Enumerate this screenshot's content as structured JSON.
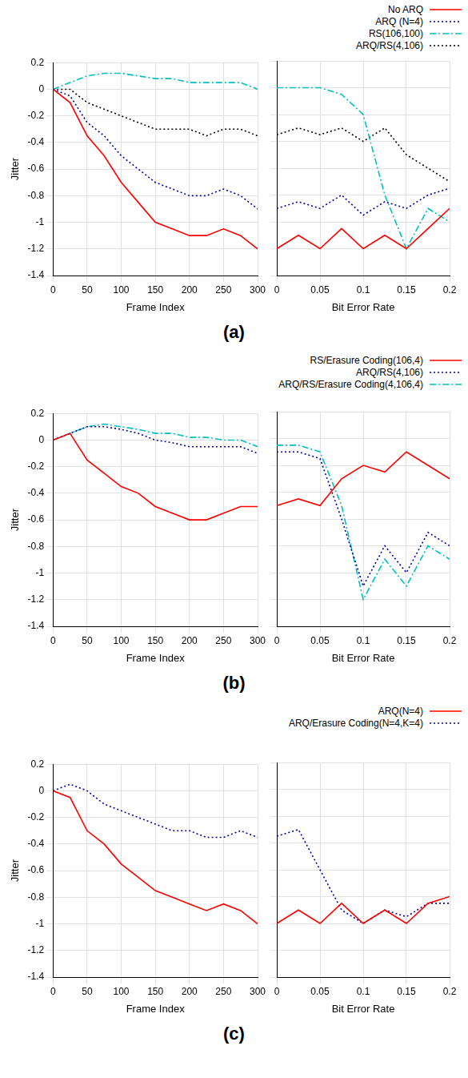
{
  "chart_data": [
    {
      "type": "line",
      "title": "(a)",
      "x_label": "Frame Index",
      "y_label": "Jitter",
      "x": [
        0,
        25,
        50,
        75,
        100,
        125,
        150,
        175,
        200,
        225,
        250,
        275,
        300
      ],
      "xlim": [
        0,
        300
      ],
      "xticks": [
        0,
        50,
        100,
        150,
        200,
        250,
        300
      ],
      "ylim": [
        -1.4,
        0.2
      ],
      "yticks": [
        -1.4,
        -1.2,
        -1,
        -0.8,
        -0.6,
        -0.4,
        -0.2,
        0,
        0.2
      ],
      "grid": true,
      "legend": "top right",
      "series": [
        {
          "name": "No ARQ",
          "color": "#ff0000",
          "line_style": "solid",
          "values": [
            0,
            -0.1,
            -0.35,
            -0.5,
            -0.7,
            -0.85,
            -1.0,
            -1.05,
            -1.1,
            -1.1,
            -1.05,
            -1.1,
            -1.2
          ]
        },
        {
          "name": "ARQ (N=4)",
          "color": "#0000a0",
          "line_style": "dotted",
          "values": [
            0,
            -0.05,
            -0.25,
            -0.35,
            -0.5,
            -0.6,
            -0.7,
            -0.75,
            -0.8,
            -0.8,
            -0.75,
            -0.8,
            -0.9
          ]
        },
        {
          "name": "RS(106,100)",
          "color": "#00c0c0",
          "line_style": "dashdot",
          "values": [
            0,
            0.05,
            0.1,
            0.12,
            0.12,
            0.1,
            0.08,
            0.08,
            0.05,
            0.05,
            0.05,
            0.05,
            0
          ]
        },
        {
          "name": "ARQ/RS(4,106)",
          "color": "#000000",
          "line_style": "dotted",
          "values": [
            0,
            0,
            -0.1,
            -0.15,
            -0.2,
            -0.25,
            -0.3,
            -0.3,
            -0.3,
            -0.35,
            -0.3,
            -0.3,
            -0.35
          ]
        }
      ]
    },
    {
      "type": "line",
      "x_label": "Bit Error Rate",
      "x": [
        0,
        0.025,
        0.05,
        0.075,
        0.1,
        0.125,
        0.15,
        0.175,
        0.2
      ],
      "xlim": [
        0,
        0.2
      ],
      "xticks": [
        0,
        0.05,
        0.1,
        0.15,
        0.2
      ],
      "ylim": [
        -1.4,
        0.2
      ],
      "yticks": [
        -1.4,
        -1.2,
        -1,
        -0.8,
        -0.6,
        -0.4,
        -0.2,
        0,
        0.2
      ],
      "grid": true,
      "tick_labels": "x",
      "series": [
        {
          "name": "No ARQ",
          "color": "#ff0000",
          "line_style": "solid",
          "values": [
            -1.2,
            -1.1,
            -1.2,
            -1.05,
            -1.2,
            -1.1,
            -1.2,
            -1.05,
            -0.9
          ]
        },
        {
          "name": "ARQ (N=4)",
          "color": "#0000a0",
          "line_style": "dotted",
          "values": [
            -0.9,
            -0.85,
            -0.9,
            -0.8,
            -0.95,
            -0.85,
            -0.9,
            -0.8,
            -0.75
          ]
        },
        {
          "name": "RS(106,100)",
          "color": "#00c0c0",
          "line_style": "dashdot",
          "values": [
            0,
            0,
            0,
            -0.05,
            -0.2,
            -0.8,
            -1.2,
            -0.9,
            -1.0
          ]
        },
        {
          "name": "ARQ/RS(4,106)",
          "color": "#000000",
          "line_style": "dotted",
          "values": [
            -0.35,
            -0.3,
            -0.35,
            -0.3,
            -0.4,
            -0.3,
            -0.5,
            -0.6,
            -0.7
          ]
        }
      ]
    },
    {
      "type": "line",
      "title": "(b)",
      "x_label": "Frame Index",
      "y_label": "Jitter",
      "x": [
        0,
        25,
        50,
        75,
        100,
        125,
        150,
        175,
        200,
        225,
        250,
        275,
        300
      ],
      "xlim": [
        0,
        300
      ],
      "xticks": [
        0,
        50,
        100,
        150,
        200,
        250,
        300
      ],
      "ylim": [
        -1.4,
        0.2
      ],
      "yticks": [
        -1.4,
        -1.2,
        -1,
        -0.8,
        -0.6,
        -0.4,
        -0.2,
        0,
        0.2
      ],
      "grid": true,
      "legend": "top right",
      "series": [
        {
          "name": "RS/Erasure Coding(106,4)",
          "color": "#ff0000",
          "line_style": "solid",
          "values": [
            0,
            0.05,
            -0.15,
            -0.25,
            -0.35,
            -0.4,
            -0.5,
            -0.55,
            -0.6,
            -0.6,
            -0.55,
            -0.5,
            -0.5
          ]
        },
        {
          "name": "ARQ/RS(4,106)",
          "color": "#0000a0",
          "line_style": "dotted",
          "values": [
            0,
            0.05,
            0.1,
            0.1,
            0.08,
            0.05,
            0,
            -0.02,
            -0.05,
            -0.05,
            -0.05,
            -0.05,
            -0.1
          ]
        },
        {
          "name": "ARQ/RS/Erasure Coding(4,106,4)",
          "color": "#00c0c0",
          "line_style": "dashdot",
          "values": [
            0,
            0.05,
            0.1,
            0.12,
            0.1,
            0.08,
            0.05,
            0.05,
            0.02,
            0.02,
            0,
            0,
            -0.05
          ]
        }
      ]
    },
    {
      "type": "line",
      "x_label": "Bit Error Rate",
      "x": [
        0,
        0.025,
        0.05,
        0.075,
        0.1,
        0.125,
        0.15,
        0.175,
        0.2
      ],
      "xlim": [
        0,
        0.2
      ],
      "xticks": [
        0,
        0.05,
        0.1,
        0.15,
        0.2
      ],
      "ylim": [
        -1.4,
        0.2
      ],
      "yticks": [
        -1.4,
        -1.2,
        -1,
        -0.8,
        -0.6,
        -0.4,
        -0.2,
        0,
        0.2
      ],
      "grid": true,
      "tick_labels": "x",
      "series": [
        {
          "name": "RS/Erasure Coding(106,4)",
          "color": "#ff0000",
          "line_style": "solid",
          "values": [
            -0.5,
            -0.45,
            -0.5,
            -0.3,
            -0.2,
            -0.25,
            -0.1,
            -0.2,
            -0.3
          ]
        },
        {
          "name": "ARQ/RS(4,106)",
          "color": "#0000a0",
          "line_style": "dotted",
          "values": [
            -0.1,
            -0.1,
            -0.15,
            -0.6,
            -1.1,
            -0.8,
            -1.0,
            -0.7,
            -0.8
          ]
        },
        {
          "name": "ARQ/RS/Erasure Coding(4,106,4)",
          "color": "#00c0c0",
          "line_style": "dashdot",
          "values": [
            -0.05,
            -0.05,
            -0.1,
            -0.5,
            -1.2,
            -0.9,
            -1.1,
            -0.8,
            -0.9
          ]
        }
      ]
    },
    {
      "type": "line",
      "title": "(c)",
      "x_label": "Frame Index",
      "y_label": "Jitter",
      "x": [
        0,
        25,
        50,
        75,
        100,
        125,
        150,
        175,
        200,
        225,
        250,
        275,
        300
      ],
      "xlim": [
        0,
        300
      ],
      "xticks": [
        0,
        50,
        100,
        150,
        200,
        250,
        300
      ],
      "ylim": [
        -1.4,
        0.2
      ],
      "yticks": [
        -1.4,
        -1.2,
        -1,
        -0.8,
        -0.6,
        -0.4,
        -0.2,
        0,
        0.2
      ],
      "grid": true,
      "legend": "top right",
      "series": [
        {
          "name": "ARQ(N=4)",
          "color": "#ff0000",
          "line_style": "solid",
          "values": [
            0,
            -0.05,
            -0.3,
            -0.4,
            -0.55,
            -0.65,
            -0.75,
            -0.8,
            -0.85,
            -0.9,
            -0.85,
            -0.9,
            -1.0
          ]
        },
        {
          "name": "ARQ/Erasure Coding(N=4,K=4)",
          "color": "#0000a0",
          "line_style": "dotted",
          "values": [
            0,
            0.05,
            0,
            -0.1,
            -0.15,
            -0.2,
            -0.25,
            -0.3,
            -0.3,
            -0.35,
            -0.35,
            -0.3,
            -0.35
          ]
        }
      ]
    },
    {
      "type": "line",
      "x_label": "Bit Error Rate",
      "x": [
        0,
        0.025,
        0.05,
        0.075,
        0.1,
        0.125,
        0.15,
        0.175,
        0.2
      ],
      "xlim": [
        0,
        0.2
      ],
      "xticks": [
        0,
        0.05,
        0.1,
        0.15,
        0.2
      ],
      "ylim": [
        -1.4,
        0.2
      ],
      "yticks": [
        -1.4,
        -1.2,
        -1,
        -0.8,
        -0.6,
        -0.4,
        -0.2,
        0,
        0.2
      ],
      "grid": true,
      "tick_labels": "x",
      "series": [
        {
          "name": "ARQ(N=4)",
          "color": "#ff0000",
          "line_style": "solid",
          "values": [
            -1.0,
            -0.9,
            -1.0,
            -0.85,
            -1.0,
            -0.9,
            -1.0,
            -0.85,
            -0.8
          ]
        },
        {
          "name": "ARQ/Erasure Coding(N=4,K=4)",
          "color": "#0000a0",
          "line_style": "dotted",
          "values": [
            -0.35,
            -0.3,
            -0.6,
            -0.9,
            -1.0,
            -0.9,
            -0.95,
            -0.85,
            -0.85
          ]
        }
      ]
    }
  ]
}
